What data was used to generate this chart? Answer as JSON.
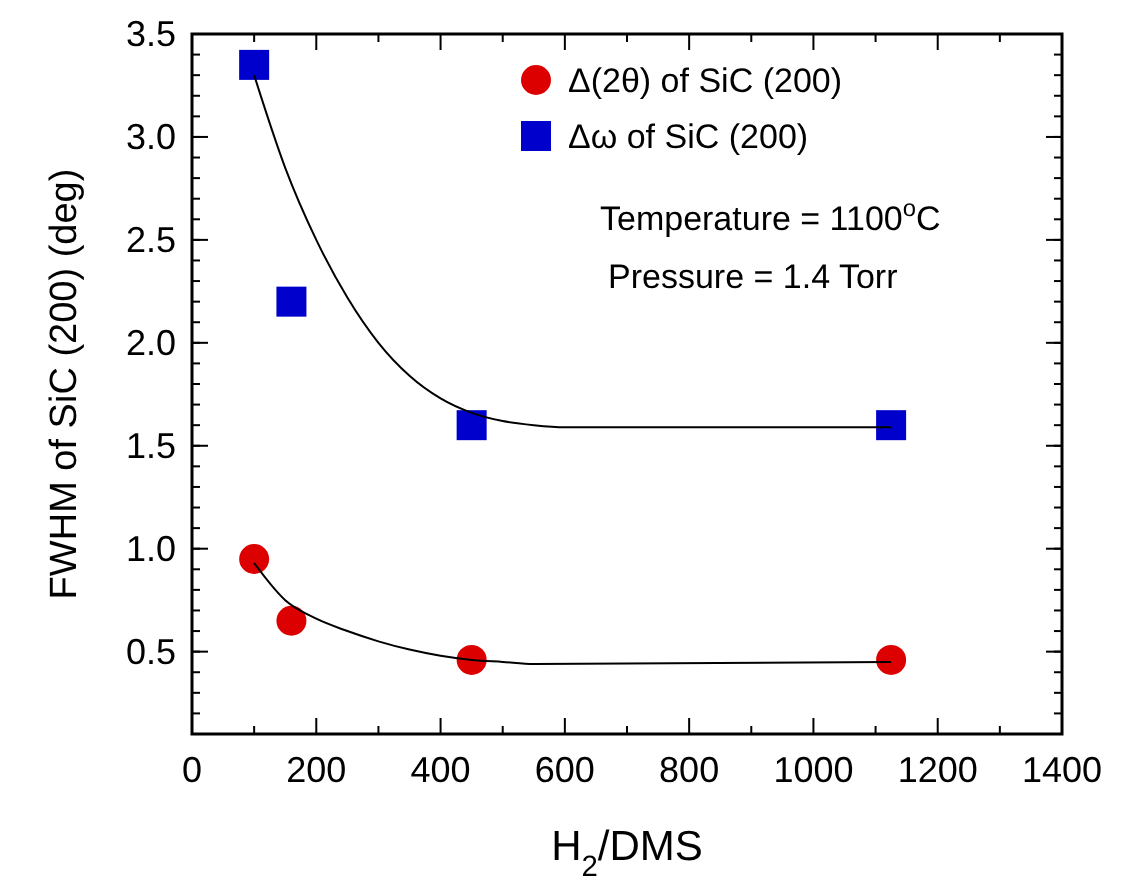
{
  "chart_data": {
    "type": "scatter",
    "xlabel": "H$_{2}$/DMS",
    "ylabel": "FWHM of SiC (200) (deg)",
    "xlim": [
      0,
      1400
    ],
    "xticks": [
      0,
      200,
      400,
      600,
      800,
      1000,
      1200,
      1400
    ],
    "ylim": [
      0.1,
      3.5
    ],
    "yticks": [
      0.5,
      {
        "value": 1,
        "label": "1.0"
      },
      1.5,
      {
        "value": 2,
        "label": "2.0"
      },
      2.5,
      {
        "value": 3,
        "label": "3.0"
      },
      3.5
    ],
    "grid": false,
    "legend": "top right",
    "annotations": [
      "Temperature = 1100$^{o}$C",
      "Pressure = 1.4 Torr"
    ],
    "series": [
      {
        "name": "Δ(2θ)  of SiC (200)",
        "color": "#dd0000",
        "marker": "circle",
        "x": [
          100,
          160,
          450,
          1125
        ],
        "values": [
          0.95,
          0.65,
          0.46,
          0.46
        ]
      },
      {
        "name": "Δω  of SiC (200)",
        "color": "#0000cc",
        "marker": "square",
        "x": [
          100,
          160,
          450,
          1125
        ],
        "values": [
          3.35,
          2.2,
          1.6,
          1.6
        ]
      },
      {
        "type": "line",
        "color": "#000000",
        "x": [
          100,
          150,
          200,
          250,
          300,
          350,
          400,
          450,
          500,
          550,
          1125
        ],
        "values": [
          0.93,
          0.75,
          0.66,
          0.6,
          0.55,
          0.51,
          0.48,
          0.46,
          0.45,
          0.44,
          0.45
        ]
      },
      {
        "type": "line",
        "color": "#000000",
        "x": [
          100,
          150,
          200,
          250,
          300,
          350,
          400,
          450,
          500,
          550,
          600,
          1125
        ],
        "values": [
          3.3,
          2.85,
          2.5,
          2.22,
          2.0,
          1.84,
          1.73,
          1.66,
          1.62,
          1.6,
          1.59,
          1.59
        ]
      }
    ]
  }
}
